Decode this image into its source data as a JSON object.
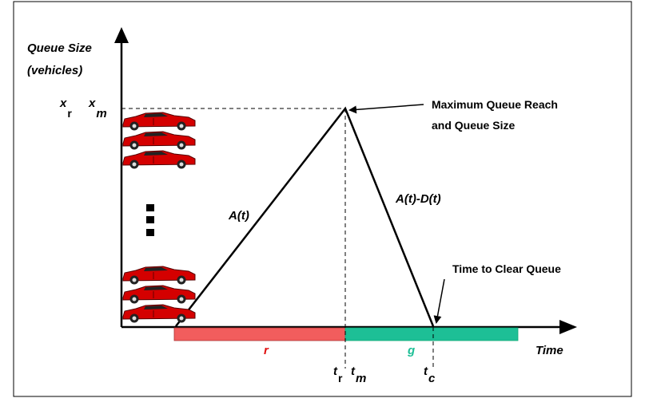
{
  "y_axis": {
    "label_lines": [
      "Queue Size",
      "(vehicles)"
    ]
  },
  "x_axis": {
    "label": "Time"
  },
  "y_markers": [
    {
      "base": "x",
      "sub": "r"
    },
    {
      "base": "x",
      "sub": "m"
    }
  ],
  "x_markers": [
    {
      "base": "t",
      "sub": "r"
    },
    {
      "base": "t",
      "sub": "m"
    },
    {
      "base": "t",
      "sub": "c"
    }
  ],
  "annotations": {
    "max_queue": [
      "Maximum Queue Reach",
      "and Queue Size"
    ],
    "clear_queue": "Time to Clear Queue"
  },
  "curves": {
    "arrival": "A(t)",
    "net": "A(t)-D(t)"
  },
  "phases": {
    "red": "r",
    "green": "g"
  }
}
